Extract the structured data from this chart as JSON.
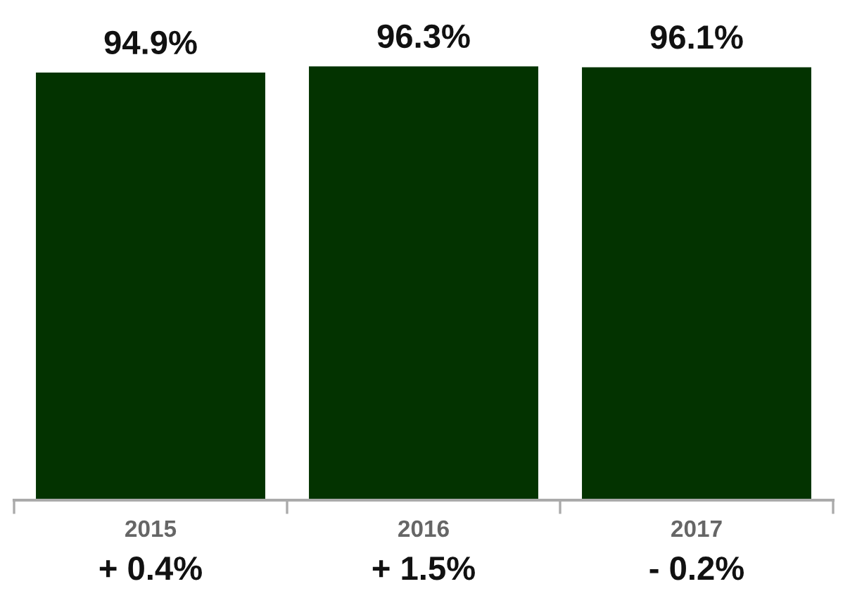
{
  "chart_data": {
    "type": "bar",
    "categories": [
      "2015",
      "2016",
      "2017"
    ],
    "values": [
      94.9,
      96.3,
      96.1
    ],
    "value_labels": [
      "94.9%",
      "96.3%",
      "96.1%"
    ],
    "color": "#033300",
    "annotations": [
      "+ 0.4%",
      "+ 1.5%",
      "- 0.2%"
    ],
    "grid": false,
    "legend": false
  }
}
